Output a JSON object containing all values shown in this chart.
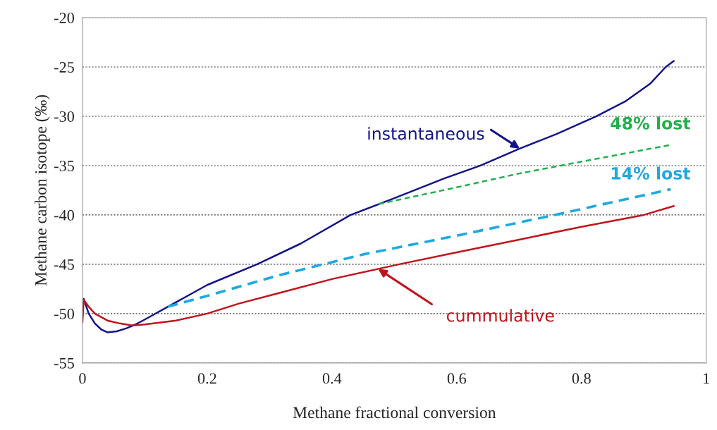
{
  "chart_data": {
    "type": "line",
    "xlabel": "Methane fractional conversion",
    "ylabel": "Methane carbon isotope (‰)",
    "xlim": [
      0,
      1
    ],
    "ylim": [
      -55,
      -20
    ],
    "xticks": [
      0,
      0.2,
      0.4,
      0.6,
      0.8,
      1
    ],
    "yticks": [
      -55,
      -50,
      -45,
      -40,
      -35,
      -30,
      -25,
      -20
    ],
    "grid": "y",
    "marker": "none",
    "series": [
      {
        "name": "instantaneous",
        "color": "#14148a",
        "line_style": "solid",
        "x": [
          0.002,
          0.01,
          0.02,
          0.03,
          0.04,
          0.055,
          0.07,
          0.085,
          0.1,
          0.14,
          0.2,
          0.28,
          0.35,
          0.43,
          0.5,
          0.58,
          0.638,
          0.7,
          0.76,
          0.824,
          0.87,
          0.91,
          0.935,
          0.948
        ],
        "values": [
          -48.5,
          -50.0,
          -51.0,
          -51.6,
          -51.9,
          -51.8,
          -51.5,
          -51.1,
          -50.6,
          -49.2,
          -47.1,
          -45.0,
          -42.9,
          -40.0,
          -38.3,
          -36.3,
          -35.0,
          -33.3,
          -31.8,
          -30.0,
          -28.5,
          -26.7,
          -25.0,
          -24.4
        ]
      },
      {
        "name": "48% lost",
        "color": "#22b04b",
        "line_style": "dashed",
        "x": [
          0.475,
          0.6,
          0.7,
          0.8,
          0.943
        ],
        "values": [
          -38.9,
          -37.2,
          -35.8,
          -34.6,
          -32.9
        ]
      },
      {
        "name": "14% lost",
        "color": "#1fa8e2",
        "line_style": "dashed",
        "x": [
          0.137,
          0.2,
          0.316,
          0.45,
          0.6,
          0.757,
          0.943
        ],
        "values": [
          -49.3,
          -48.2,
          -46.1,
          -44.0,
          -42.1,
          -40.0,
          -37.4
        ]
      },
      {
        "name": "cummulative",
        "color": "#c0141c",
        "line_style": "solid",
        "x": [
          0.0,
          0.002,
          0.01,
          0.02,
          0.04,
          0.06,
          0.08,
          0.1,
          0.15,
          0.2,
          0.25,
          0.316,
          0.4,
          0.508,
          0.6,
          0.7,
          0.8,
          0.9,
          0.948
        ],
        "values": [
          -50.9,
          -48.6,
          -49.3,
          -50.0,
          -50.7,
          -51.0,
          -51.2,
          -51.1,
          -50.7,
          -50.0,
          -49.0,
          -47.9,
          -46.5,
          -45.0,
          -43.8,
          -42.5,
          -41.2,
          -40.0,
          -39.1
        ]
      }
    ]
  }
}
